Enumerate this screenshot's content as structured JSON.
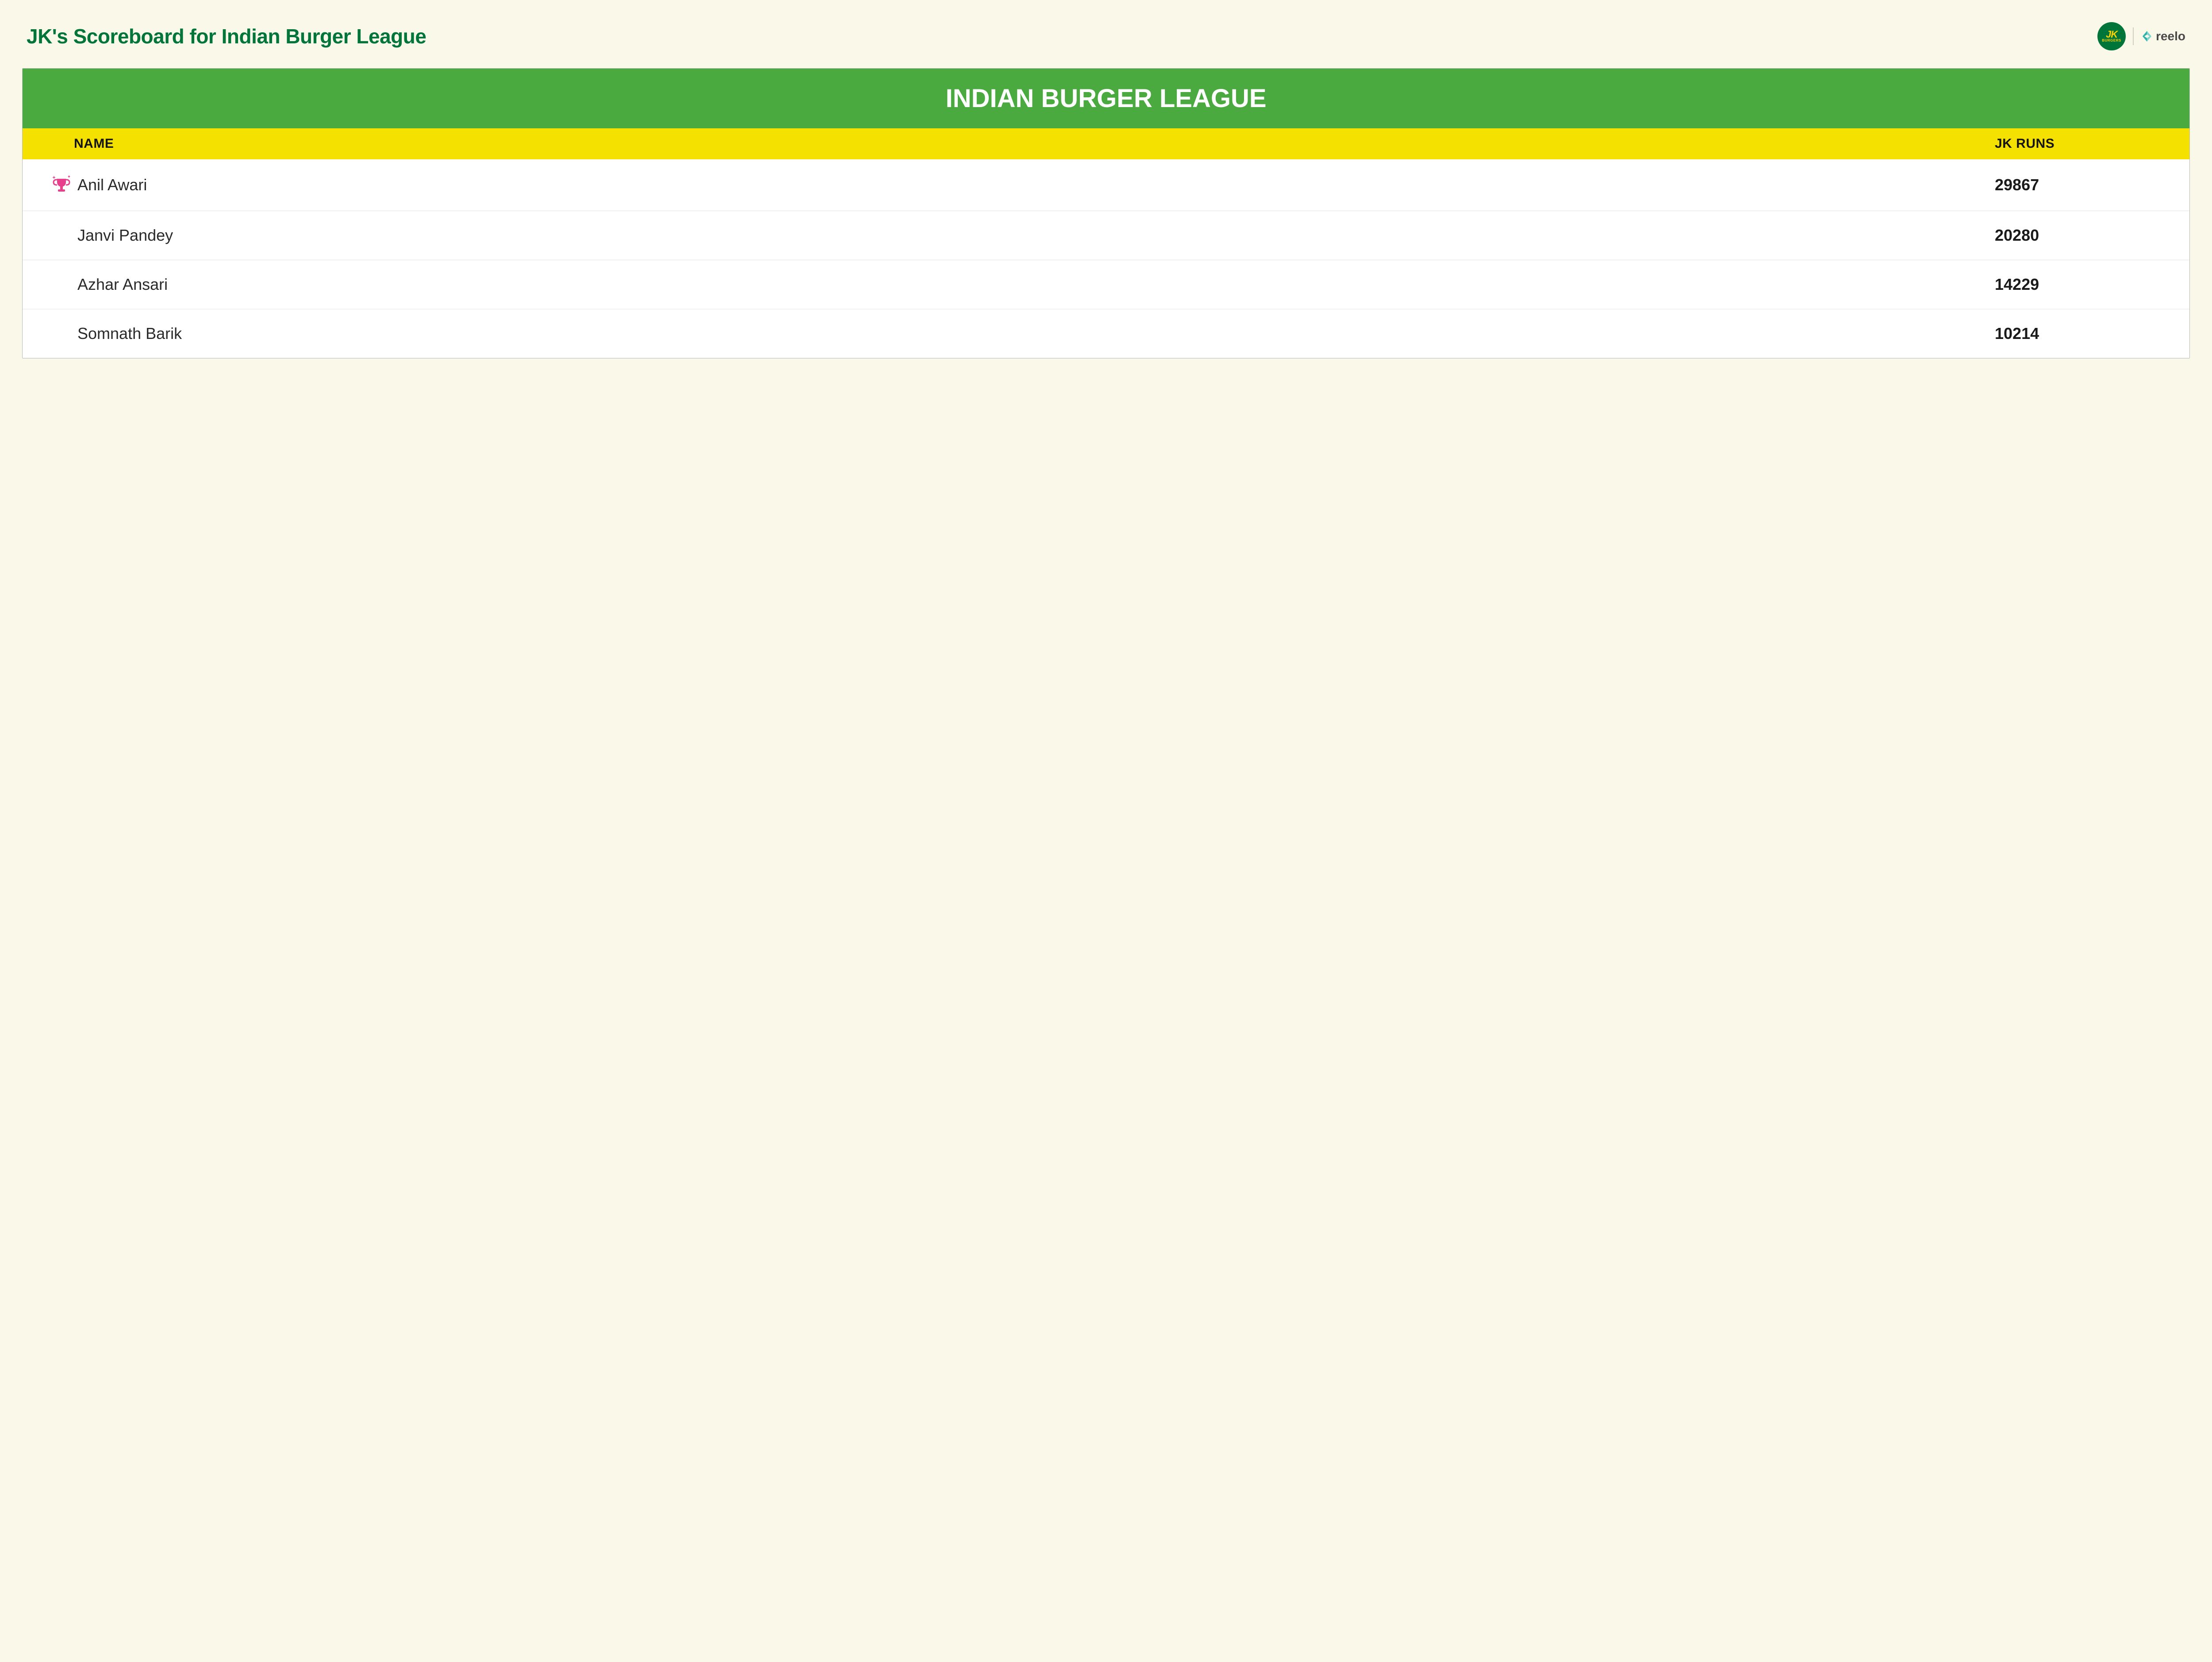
{
  "page": {
    "title": "JK's Scoreboard for Indian Burger League",
    "title_color": "#00753a",
    "background_color": "#faf8e9"
  },
  "logos": {
    "jk": {
      "text": "JK",
      "subtext": "BURGERS",
      "bg_color": "#00753a",
      "text_color": "#ffd100",
      "accent_color": "#ffd100"
    },
    "reelo": {
      "text": "reelo",
      "icon_color": "#2db2a8",
      "text_color": "#4a4a4a"
    }
  },
  "board": {
    "title": "INDIAN BURGER LEAGUE",
    "title_bg": "#4aa93f",
    "title_color": "#ffffff",
    "header_bg": "#f4e100",
    "header_color": "#151515",
    "columns": {
      "name": "NAME",
      "runs": "JK RUNS"
    },
    "row_border_color": "#e5e5e5",
    "row_bg": "#ffffff",
    "trophy_color": "#e83e8c",
    "rows": [
      {
        "name": "Anil Awari",
        "runs": "29867",
        "trophy": true
      },
      {
        "name": "Janvi Pandey",
        "runs": "20280",
        "trophy": false
      },
      {
        "name": "Azhar Ansari",
        "runs": "14229",
        "trophy": false
      },
      {
        "name": "Somnath Barik",
        "runs": "10214",
        "trophy": false
      }
    ]
  }
}
